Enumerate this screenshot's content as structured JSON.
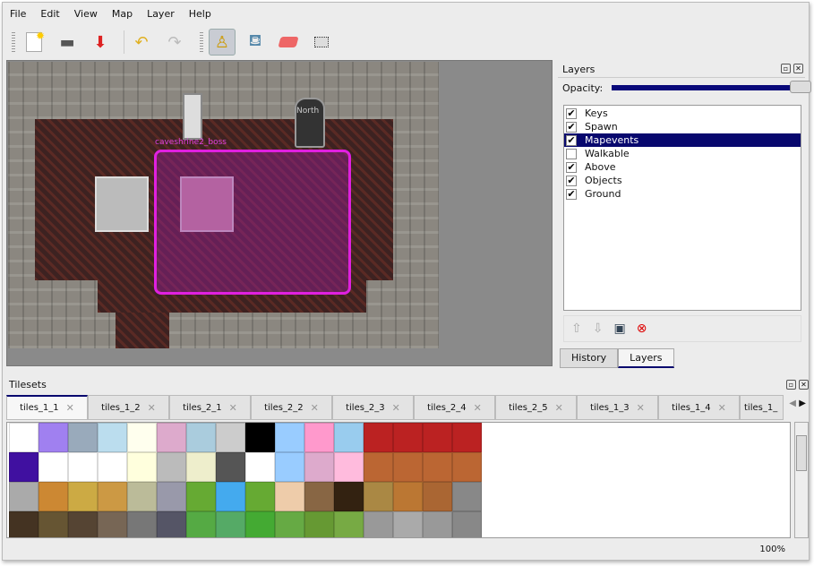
{
  "menu": [
    "File",
    "Edit",
    "View",
    "Map",
    "Layer",
    "Help"
  ],
  "toolbar": {
    "icons": [
      "new-file-icon",
      "open-folder-icon",
      "save-icon",
      "undo-icon",
      "redo-icon",
      "stamp-brush-icon",
      "bucket-fill-icon",
      "eraser-icon",
      "rectangle-select-icon"
    ],
    "active": "stamp-brush-icon"
  },
  "map": {
    "object_label": "caveshrine2_boss",
    "north_label": "North",
    "selection_color": "#e020e0"
  },
  "layers_dock": {
    "title": "Layers",
    "opacity_label": "Opacity:",
    "opacity": 1.0,
    "layers": [
      {
        "name": "Keys",
        "visible": true
      },
      {
        "name": "Spawn",
        "visible": true
      },
      {
        "name": "Mapevents",
        "visible": true,
        "selected": true
      },
      {
        "name": "Walkable",
        "visible": false
      },
      {
        "name": "Above",
        "visible": true
      },
      {
        "name": "Objects",
        "visible": true
      },
      {
        "name": "Ground",
        "visible": true
      }
    ],
    "tabs": [
      "History",
      "Layers"
    ],
    "active_tab": "Layers"
  },
  "tilesets": {
    "title": "Tilesets",
    "tabs": [
      "tiles_1_1",
      "tiles_1_2",
      "tiles_2_1",
      "tiles_2_2",
      "tiles_2_3",
      "tiles_2_4",
      "tiles_2_5",
      "tiles_1_3",
      "tiles_1_4",
      "tiles_1_"
    ],
    "palette": [
      [
        "#fff",
        "#a080f0",
        "#9ab",
        "#bde",
        "#ffe",
        "#dac",
        "#acd",
        "#ccc",
        "#000",
        "#9cf",
        "#f9c",
        "#9ce",
        "#b22",
        "#b22",
        "#b22",
        "#b22"
      ],
      [
        "#4010a0",
        "#fff",
        "#fff",
        "#fff",
        "#ffd",
        "#bbb",
        "#eec",
        "#555",
        "#fff",
        "#9cf",
        "#dac",
        "#fbd",
        "#b63",
        "#b63",
        "#b63",
        "#b63"
      ],
      [
        "#aaa",
        "#c83",
        "#ca4",
        "#c94",
        "#bb9",
        "#99a",
        "#6a3",
        "#4ae",
        "#6a3",
        "#eca",
        "#864",
        "#321",
        "#a84",
        "#b73",
        "#a63",
        "#888"
      ],
      [
        "#432",
        "#653",
        "#543",
        "#765",
        "#777",
        "#556",
        "#5a4",
        "#5a6",
        "#4a3",
        "#6a4",
        "#693",
        "#7a4",
        "#999",
        "#aaa",
        "#999",
        "#888"
      ]
    ]
  },
  "status": {
    "zoom": "100%"
  }
}
